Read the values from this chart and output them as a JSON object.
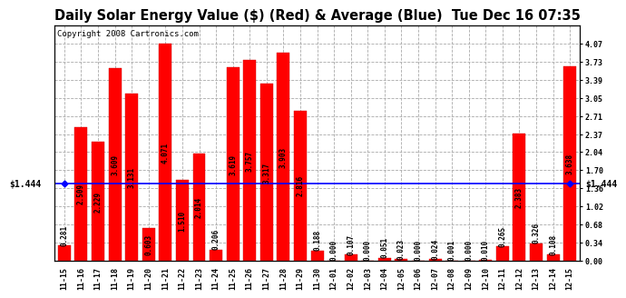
{
  "title": "Daily Solar Energy Value ($) (Red) & Average (Blue)  Tue Dec 16 07:35",
  "copyright": "Copyright 2008 Cartronics.com",
  "categories": [
    "11-15",
    "11-16",
    "11-17",
    "11-18",
    "11-19",
    "11-20",
    "11-21",
    "11-22",
    "11-23",
    "11-24",
    "11-25",
    "11-26",
    "11-27",
    "11-28",
    "11-29",
    "11-30",
    "12-01",
    "12-02",
    "12-03",
    "12-04",
    "12-05",
    "12-06",
    "12-07",
    "12-08",
    "12-09",
    "12-10",
    "12-11",
    "12-12",
    "12-13",
    "12-14",
    "12-15"
  ],
  "values": [
    0.281,
    2.509,
    2.229,
    3.609,
    3.131,
    0.603,
    4.071,
    1.51,
    2.014,
    0.206,
    3.619,
    3.757,
    3.317,
    3.903,
    2.816,
    0.188,
    0.0,
    0.107,
    0.0,
    0.051,
    0.023,
    0.0,
    0.024,
    0.001,
    0.0,
    0.01,
    0.265,
    2.383,
    0.326,
    0.108,
    3.638
  ],
  "average": 1.444,
  "average_label_left": "$1.444",
  "average_label_right": "$1.444",
  "ylim": [
    0.0,
    4.41
  ],
  "yticks_right": [
    0.0,
    0.34,
    0.68,
    1.02,
    1.36,
    1.7,
    2.04,
    2.37,
    2.71,
    3.05,
    3.39,
    3.73,
    4.07
  ],
  "bar_color": "#FF0000",
  "avg_line_color": "#0000FF",
  "background_color": "#FFFFFF",
  "grid_color": "#AAAAAA",
  "title_fontsize": 10.5,
  "copyright_fontsize": 6.5,
  "tick_label_fontsize": 6,
  "value_label_fontsize": 5.5,
  "avg_fontsize": 7
}
